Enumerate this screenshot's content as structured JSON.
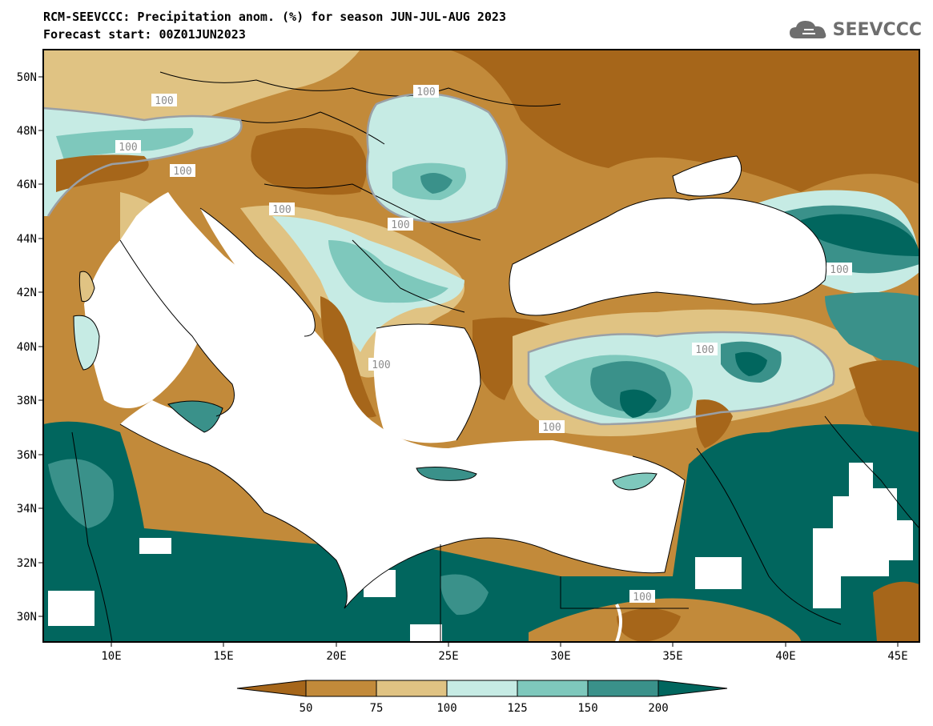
{
  "header": {
    "title": "RCM-SEEVCCC: Precipitation anom. (%) for season JUN-JUL-AUG 2023",
    "subtitle": "Forecast start: 00Z01JUN2023"
  },
  "logo": {
    "text": "SEEVCCC",
    "icon": "cloud-icon"
  },
  "map": {
    "lat_labels": [
      "50N",
      "48N",
      "46N",
      "44N",
      "42N",
      "40N",
      "38N",
      "36N",
      "34N",
      "32N",
      "30N"
    ],
    "lon_labels": [
      "10E",
      "15E",
      "20E",
      "25E",
      "30E",
      "35E",
      "40E",
      "45E"
    ],
    "contour_labels": [
      "100",
      "100",
      "100",
      "100",
      "100",
      "100",
      "100",
      "100",
      "100",
      "100",
      "100"
    ],
    "colors": {
      "below_50": "#a6661a",
      "50_75": "#c28a3a",
      "75_100": "#e0c383",
      "100_125": "#c6ebe4",
      "125_150": "#7ec8bc",
      "150_200": "#3a918a",
      "above_200": "#01665e",
      "sea": "#ffffff"
    }
  },
  "legend": {
    "labels": [
      "50",
      "75",
      "100",
      "125",
      "150",
      "200"
    ],
    "colors": [
      "#a6661a",
      "#c28a3a",
      "#e0c383",
      "#c6ebe4",
      "#7ec8bc",
      "#3a918a",
      "#01665e"
    ]
  }
}
